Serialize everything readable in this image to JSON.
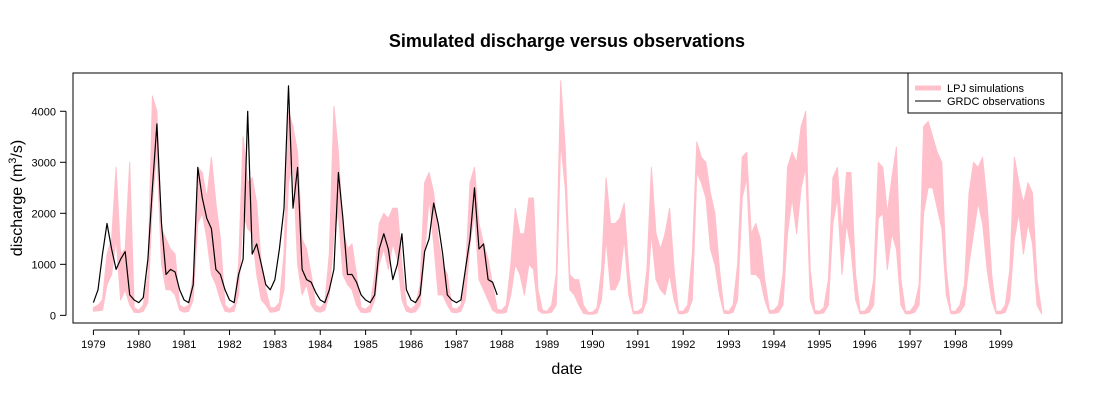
{
  "chart_data": {
    "type": "line",
    "title": "Simulated discharge versus observations",
    "xlabel": "date",
    "ylabel": "discharge (m",
    "ylabel_sup": "3",
    "ylabel_tail": "/s)",
    "xlim": [
      1978.55,
      2000.35
    ],
    "ylim": [
      -150,
      4750
    ],
    "yticks": [
      0,
      1000,
      2000,
      3000,
      4000
    ],
    "xticks": [
      "1979",
      "1980",
      "1981",
      "1982",
      "1983",
      "1984",
      "1985",
      "1986",
      "1987",
      "1988",
      "1989",
      "1990",
      "1991",
      "1992",
      "1993",
      "1994",
      "1995",
      "1996",
      "1997",
      "1998",
      "1999"
    ],
    "grid": false,
    "legend": {
      "position": "top-right",
      "entries": [
        "LPJ simulations",
        "GRDC observations"
      ]
    },
    "colors": {
      "simulations": "#ffc0cb",
      "observations": "#000000"
    },
    "series": [
      {
        "name": "LPJ simulations",
        "style": "band",
        "x": [
          1979.0,
          1979.1,
          1979.2,
          1979.3,
          1979.4,
          1979.5,
          1979.6,
          1979.7,
          1979.8,
          1979.9,
          1980.0,
          1980.1,
          1980.2,
          1980.3,
          1980.4,
          1980.5,
          1980.6,
          1980.7,
          1980.8,
          1980.9,
          1981.0,
          1981.1,
          1981.2,
          1981.3,
          1981.4,
          1981.5,
          1981.6,
          1981.7,
          1981.8,
          1981.9,
          1982.0,
          1982.1,
          1982.2,
          1982.3,
          1982.4,
          1982.5,
          1982.6,
          1982.7,
          1982.8,
          1982.9,
          1983.0,
          1983.1,
          1983.2,
          1983.3,
          1983.4,
          1983.5,
          1983.6,
          1983.7,
          1983.8,
          1983.9,
          1984.0,
          1984.1,
          1984.2,
          1984.3,
          1984.4,
          1984.5,
          1984.6,
          1984.7,
          1984.8,
          1984.9,
          1985.0,
          1985.1,
          1985.2,
          1985.3,
          1985.4,
          1985.5,
          1985.6,
          1985.7,
          1985.8,
          1985.9,
          1986.0,
          1986.1,
          1986.2,
          1986.3,
          1986.4,
          1986.5,
          1986.6,
          1986.7,
          1986.8,
          1986.9,
          1987.0,
          1987.1,
          1987.2,
          1987.3,
          1987.4,
          1987.5,
          1987.6,
          1987.7,
          1987.8,
          1987.9,
          1988.0,
          1988.1,
          1988.2,
          1988.3,
          1988.4,
          1988.5,
          1988.6,
          1988.7,
          1988.8,
          1988.9,
          1989.0,
          1989.1,
          1989.2,
          1989.3,
          1989.4,
          1989.5,
          1989.6,
          1989.7,
          1989.8,
          1989.9,
          1990.0,
          1990.1,
          1990.2,
          1990.3,
          1990.4,
          1990.5,
          1990.6,
          1990.7,
          1990.8,
          1990.9,
          1991.0,
          1991.1,
          1991.2,
          1991.3,
          1991.4,
          1991.5,
          1991.6,
          1991.7,
          1991.8,
          1991.9,
          1992.0,
          1992.1,
          1992.2,
          1992.3,
          1992.4,
          1992.5,
          1992.6,
          1992.7,
          1992.8,
          1992.9,
          1993.0,
          1993.1,
          1993.2,
          1993.3,
          1993.4,
          1993.5,
          1993.6,
          1993.7,
          1993.8,
          1993.9,
          1994.0,
          1994.1,
          1994.2,
          1994.3,
          1994.4,
          1994.5,
          1994.6,
          1994.7,
          1994.8,
          1994.9,
          1995.0,
          1995.1,
          1995.2,
          1995.3,
          1995.4,
          1995.5,
          1995.6,
          1995.7,
          1995.8,
          1995.9,
          1996.0,
          1996.1,
          1996.2,
          1996.3,
          1996.4,
          1996.5,
          1996.6,
          1996.7,
          1996.8,
          1996.9,
          1997.0,
          1997.1,
          1997.2,
          1997.3,
          1997.4,
          1997.5,
          1997.6,
          1997.7,
          1997.8,
          1997.9,
          1998.0,
          1998.1,
          1998.2,
          1998.3,
          1998.4,
          1998.5,
          1998.6,
          1998.7,
          1998.8,
          1998.9,
          1999.0,
          1999.1,
          1999.2,
          1999.3,
          1999.4,
          1999.5,
          1999.6,
          1999.7,
          1999.8,
          1999.9
        ],
        "low": [
          80,
          90,
          100,
          600,
          800,
          1500,
          300,
          500,
          200,
          60,
          50,
          80,
          250,
          2200,
          3200,
          1000,
          500,
          500,
          400,
          100,
          60,
          80,
          300,
          1800,
          2000,
          1500,
          800,
          600,
          300,
          80,
          60,
          80,
          400,
          2000,
          1700,
          1600,
          800,
          300,
          200,
          60,
          70,
          100,
          500,
          2600,
          3000,
          1000,
          400,
          600,
          200,
          80,
          60,
          100,
          400,
          1600,
          2000,
          800,
          600,
          500,
          200,
          60,
          50,
          70,
          300,
          1000,
          1300,
          900,
          1400,
          1100,
          300,
          80,
          50,
          70,
          200,
          1200,
          2300,
          1400,
          400,
          400,
          200,
          60,
          50,
          80,
          300,
          1400,
          2000,
          700,
          500,
          300,
          100,
          40,
          40,
          60,
          400,
          1000,
          800,
          400,
          1000,
          900,
          100,
          40,
          40,
          60,
          200,
          3400,
          2500,
          500,
          400,
          200,
          40,
          20,
          20,
          40,
          300,
          1500,
          500,
          500,
          700,
          1500,
          400,
          30,
          30,
          50,
          300,
          1600,
          700,
          500,
          400,
          800,
          300,
          30,
          30,
          60,
          300,
          2800,
          2600,
          2300,
          1300,
          1000,
          400,
          40,
          30,
          60,
          300,
          2300,
          2700,
          800,
          800,
          700,
          300,
          40,
          40,
          60,
          200,
          1600,
          2300,
          1600,
          2500,
          2900,
          300,
          30,
          30,
          50,
          200,
          1800,
          2300,
          800,
          1800,
          1300,
          300,
          30,
          30,
          60,
          200,
          1900,
          2000,
          900,
          1600,
          1300,
          200,
          30,
          30,
          60,
          200,
          2000,
          2500,
          2500,
          2100,
          1700,
          400,
          30,
          30,
          60,
          200,
          1000,
          1600,
          2200,
          1800,
          900,
          300,
          30,
          30,
          60,
          300,
          1500,
          2000,
          1200,
          1800,
          1400,
          200,
          30
        ],
        "high": [
          150,
          200,
          300,
          1200,
          1500,
          2900,
          1200,
          1300,
          3000,
          150,
          100,
          200,
          800,
          4300,
          4000,
          1700,
          1500,
          1300,
          1200,
          200,
          150,
          200,
          800,
          2900,
          2800,
          2300,
          3100,
          2200,
          1500,
          200,
          120,
          200,
          1000,
          3500,
          2600,
          2700,
          2200,
          1000,
          500,
          150,
          150,
          250,
          1200,
          4000,
          3700,
          3200,
          1500,
          1300,
          800,
          200,
          150,
          250,
          1200,
          4100,
          3200,
          1700,
          1300,
          1400,
          800,
          150,
          120,
          200,
          800,
          1800,
          2000,
          1900,
          2100,
          2100,
          1000,
          200,
          120,
          200,
          600,
          2600,
          2800,
          2400,
          1500,
          1000,
          800,
          150,
          120,
          200,
          800,
          2600,
          2900,
          1800,
          1400,
          1100,
          600,
          120,
          100,
          200,
          1000,
          2100,
          1600,
          1600,
          2300,
          2300,
          500,
          100,
          80,
          200,
          800,
          4600,
          3300,
          800,
          700,
          700,
          200,
          60,
          60,
          150,
          900,
          2700,
          1800,
          1800,
          1900,
          2200,
          900,
          80,
          80,
          150,
          900,
          2900,
          1600,
          1300,
          1600,
          2100,
          900,
          80,
          80,
          200,
          1200,
          3400,
          3100,
          3000,
          2400,
          2000,
          900,
          100,
          80,
          200,
          1000,
          3100,
          3200,
          1600,
          1800,
          1500,
          700,
          100,
          100,
          200,
          800,
          2900,
          3200,
          3000,
          3700,
          4000,
          900,
          100,
          80,
          150,
          700,
          2700,
          2900,
          1600,
          2800,
          2800,
          800,
          80,
          80,
          200,
          700,
          3000,
          2900,
          2000,
          2700,
          3300,
          700,
          80,
          80,
          200,
          600,
          3700,
          3800,
          3500,
          3200,
          3000,
          900,
          80,
          80,
          200,
          600,
          2400,
          3000,
          2900,
          3100,
          2200,
          800,
          80,
          80,
          200,
          900,
          3100,
          2600,
          2200,
          2600,
          2400,
          700,
          80
        ]
      },
      {
        "name": "GRDC observations",
        "style": "line",
        "x": [
          1979.0,
          1979.1,
          1979.2,
          1979.3,
          1979.4,
          1979.5,
          1979.6,
          1979.7,
          1979.8,
          1979.9,
          1980.0,
          1980.1,
          1980.2,
          1980.3,
          1980.4,
          1980.5,
          1980.6,
          1980.7,
          1980.8,
          1980.9,
          1981.0,
          1981.1,
          1981.2,
          1981.3,
          1981.4,
          1981.5,
          1981.6,
          1981.7,
          1981.8,
          1981.9,
          1982.0,
          1982.1,
          1982.2,
          1982.3,
          1982.4,
          1982.5,
          1982.6,
          1982.7,
          1982.8,
          1982.9,
          1983.0,
          1983.1,
          1983.2,
          1983.3,
          1983.4,
          1983.5,
          1983.6,
          1983.7,
          1983.8,
          1983.9,
          1984.0,
          1984.1,
          1984.2,
          1984.3,
          1984.4,
          1984.5,
          1984.6,
          1984.7,
          1984.8,
          1984.9,
          1985.0,
          1985.1,
          1985.2,
          1985.3,
          1985.4,
          1985.5,
          1985.6,
          1985.7,
          1985.8,
          1985.9,
          1986.0,
          1986.1,
          1986.2,
          1986.3,
          1986.4,
          1986.5,
          1986.6,
          1986.7,
          1986.8,
          1986.9,
          1987.0,
          1987.1,
          1987.2,
          1987.3,
          1987.4,
          1987.5,
          1987.6,
          1987.7,
          1987.8,
          1987.9
        ],
        "y": [
          250,
          500,
          1200,
          1800,
          1300,
          900,
          1100,
          1250,
          400,
          300,
          250,
          350,
          1100,
          2500,
          3750,
          1800,
          800,
          900,
          850,
          500,
          300,
          250,
          600,
          2900,
          2300,
          1900,
          1700,
          900,
          800,
          500,
          300,
          250,
          800,
          1100,
          4000,
          1200,
          1400,
          1000,
          600,
          500,
          700,
          1300,
          2100,
          4500,
          2100,
          2900,
          900,
          700,
          650,
          450,
          300,
          250,
          500,
          900,
          2800,
          1900,
          800,
          800,
          650,
          400,
          300,
          250,
          400,
          1300,
          1600,
          1300,
          700,
          1000,
          1600,
          500,
          300,
          250,
          400,
          1250,
          1500,
          2200,
          1800,
          1200,
          400,
          300,
          250,
          300,
          900,
          1500,
          2500,
          1300,
          1400,
          700,
          650,
          400
        ]
      }
    ]
  }
}
